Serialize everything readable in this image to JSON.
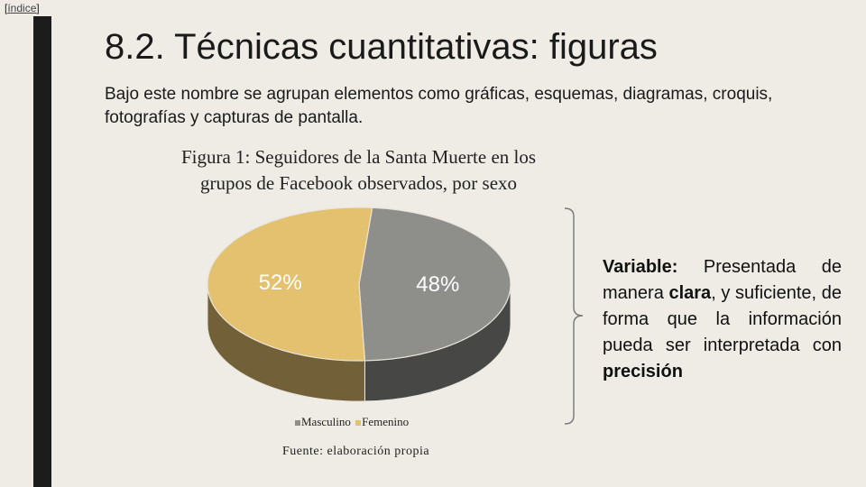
{
  "nav": {
    "index_prefix": "[",
    "index_label": "índice",
    "index_suffix": "]"
  },
  "slide": {
    "title": "8.2. Técnicas cuantitativas: figuras",
    "intro": "Bajo este nombre se agrupan elementos como gráficas, esquemas, diagramas, croquis, fotografías y capturas de pantalla."
  },
  "figure": {
    "caption": "Figura 1: Seguidores de la Santa Muerte en los grupos de Facebook observados, por sexo",
    "source": "Fuente: elaboración propia"
  },
  "chart_data": {
    "type": "pie",
    "style": "3d",
    "categories": [
      "Masculino",
      "Femenino"
    ],
    "values": [
      48,
      52
    ],
    "labels": [
      "48%",
      "52%"
    ],
    "colors": [
      "#8e8e8a",
      "#e4c16f"
    ],
    "legend": "bottom"
  },
  "note": {
    "variable_term": "Variable:",
    "text_1": " Presentada de manera ",
    "clara_term": "clara",
    "text_2": ", y suficiente, de forma que la información pueda ser interpretada con ",
    "precision_term": "precisión"
  }
}
